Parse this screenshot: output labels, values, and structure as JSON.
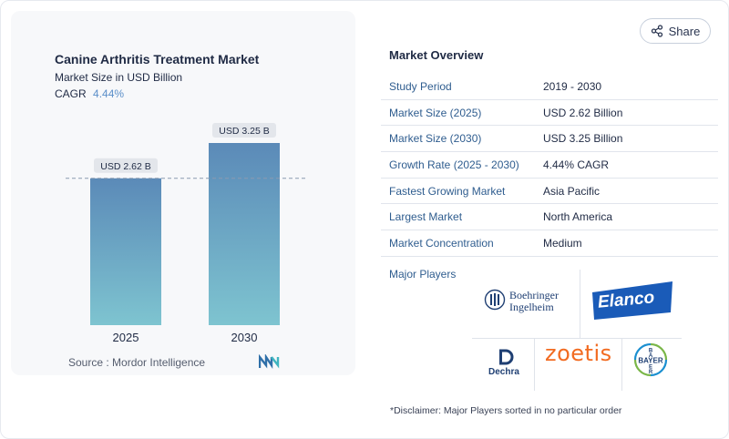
{
  "chart_data": {
    "type": "bar",
    "title": "Canine Arthritis Treatment Market",
    "subtitle": "Market Size in USD Billion",
    "categories": [
      "2025",
      "2030"
    ],
    "values": [
      2.62,
      3.25
    ],
    "data_labels": [
      "USD 2.62 B",
      "USD 3.25 B"
    ],
    "ylim": [
      0,
      3.25
    ],
    "reference_line": 2.62,
    "bar_color_top": "#5b8ab8",
    "bar_color_bottom": "#7ec4d0",
    "grid": false
  },
  "cagr": {
    "label": "CAGR",
    "value": "4.44%"
  },
  "source": "Source :  Mordor Intelligence",
  "share": {
    "label": "Share",
    "icon": "share-icon"
  },
  "overview": {
    "title": "Market Overview",
    "rows": [
      {
        "key": "Study Period",
        "value": "2019 - 2030"
      },
      {
        "key": "Market Size (2025)",
        "value": "USD 2.62 Billion"
      },
      {
        "key": "Market Size (2030)",
        "value": "USD 3.25 Billion"
      },
      {
        "key": "Growth Rate (2025 - 2030)",
        "value": "4.44% CAGR"
      },
      {
        "key": "Fastest Growing Market",
        "value": "Asia Pacific"
      },
      {
        "key": "Largest Market",
        "value": "North America"
      },
      {
        "key": "Market Concentration",
        "value": "Medium"
      }
    ]
  },
  "players": {
    "label": "Major Players",
    "logos": {
      "boehringer": [
        "Boehringer",
        "Ingelheim"
      ],
      "elanco": "Elanco",
      "dechra": "Dechra",
      "zoetis": "zoetis",
      "bayer": "BAYER"
    }
  },
  "disclaimer": "*Disclaimer: Major Players sorted in no particular order",
  "colors": {
    "accent": "#2f5d8f",
    "cagr": "#5b8fc9",
    "elanco": "#1a5bb8",
    "zoetis": "#f26b21",
    "bayer_green": "#7ab648",
    "bayer_blue": "#1b8fd0"
  }
}
